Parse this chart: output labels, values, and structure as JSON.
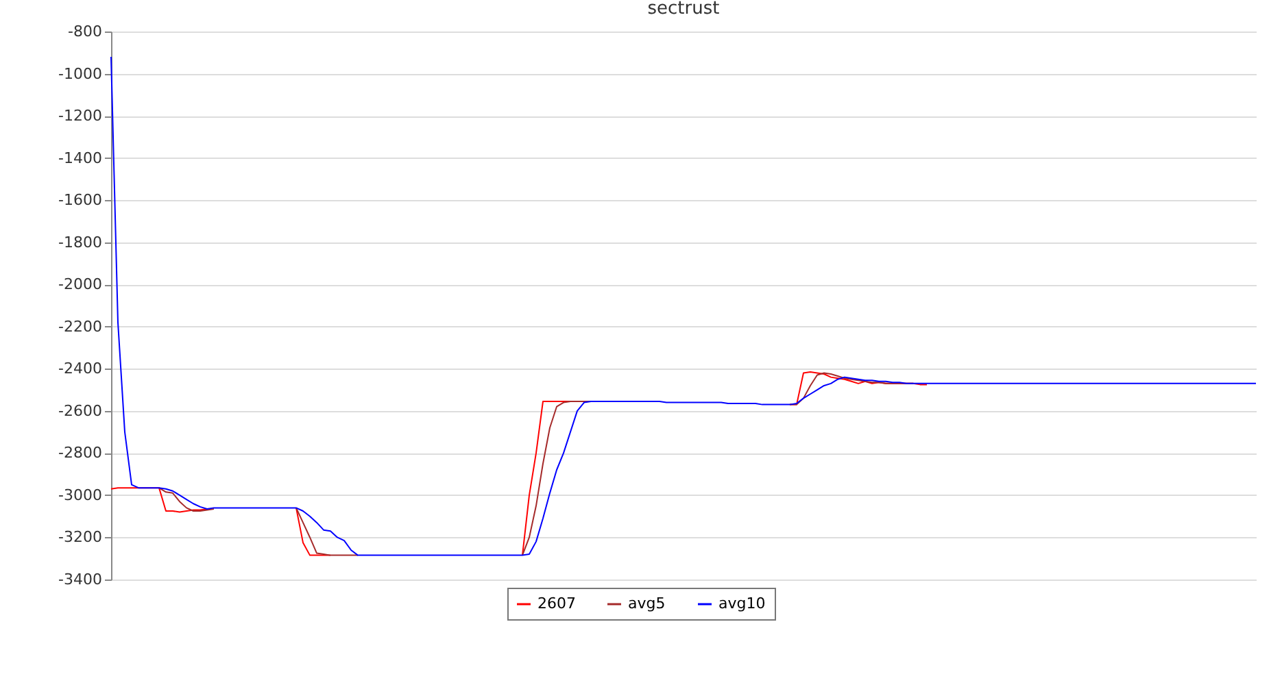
{
  "chart_data": {
    "type": "line",
    "title": "sectrust",
    "categories": [
      null,
      null,
      null,
      null,
      null,
      null,
      null,
      null,
      null,
      null,
      null,
      null,
      null,
      null,
      null,
      null,
      null,
      null,
      null,
      null,
      null,
      null,
      null,
      null,
      null,
      null,
      null,
      null,
      null,
      null,
      null,
      null,
      null,
      null,
      null,
      null,
      null,
      null,
      null,
      null,
      null,
      null,
      null,
      null,
      null,
      null,
      null,
      null,
      null,
      null,
      null,
      null,
      null,
      null,
      null,
      null,
      null,
      null,
      null,
      null,
      null,
      null,
      null,
      null,
      null,
      null,
      null,
      null,
      null,
      null,
      null,
      null,
      null,
      null,
      null,
      null,
      null,
      null,
      null,
      null,
      null,
      null,
      null,
      null,
      null,
      null,
      null,
      null,
      null,
      null,
      null,
      null,
      null,
      null,
      null,
      null,
      null,
      null,
      null,
      null,
      null,
      null,
      null,
      null,
      null,
      null,
      null,
      null,
      null,
      null,
      null,
      null,
      null,
      null,
      null,
      null,
      null,
      null,
      null,
      null,
      null,
      null,
      null,
      null,
      null,
      null,
      null,
      null,
      null,
      null,
      null,
      null,
      null,
      null,
      null,
      null,
      null,
      null,
      null,
      null,
      null,
      null,
      null,
      null,
      null,
      null,
      null,
      null,
      null,
      null,
      null,
      null,
      null,
      null,
      null,
      null,
      null,
      null,
      null,
      null,
      null,
      null,
      null,
      null,
      null,
      null,
      null,
      null
    ],
    "series": [
      {
        "name": "2607",
        "color": "#ff0000",
        "values": [
          -2970,
          -2965,
          -2965,
          -2965,
          -2965,
          -2965,
          -2965,
          -2965,
          -3075,
          -3075,
          -3080,
          -3075,
          -3070,
          -3070,
          -3065,
          null,
          null,
          null,
          null,
          null,
          null,
          null,
          null,
          null,
          null,
          null,
          null,
          -3060,
          -3225,
          -3285,
          -3285,
          -3285,
          -3285,
          null,
          null,
          null,
          null,
          null,
          null,
          null,
          null,
          null,
          null,
          null,
          null,
          null,
          null,
          null,
          null,
          null,
          null,
          null,
          null,
          null,
          null,
          null,
          null,
          null,
          null,
          null,
          -3285,
          -3000,
          -2800,
          -2555,
          -2555,
          -2555,
          -2555,
          -2555,
          null,
          null,
          null,
          null,
          null,
          null,
          null,
          null,
          null,
          null,
          null,
          null,
          null,
          null,
          null,
          null,
          null,
          null,
          null,
          null,
          null,
          null,
          null,
          null,
          null,
          null,
          null,
          null,
          null,
          null,
          null,
          -2570,
          -2570,
          -2420,
          -2415,
          -2420,
          -2425,
          -2440,
          -2445,
          -2450,
          -2460,
          -2470,
          -2460,
          -2470,
          -2465,
          -2470,
          -2470,
          -2470,
          -2470,
          -2470,
          -2475,
          -2475,
          null,
          null,
          null,
          null,
          null,
          null,
          null,
          null,
          null,
          null,
          null,
          null,
          null,
          null,
          null,
          null,
          null,
          null,
          null,
          null,
          null,
          null,
          null,
          null,
          null,
          null,
          null,
          null,
          null,
          null,
          null,
          null,
          null,
          null,
          null,
          null,
          null,
          null,
          null,
          null,
          null,
          null,
          null,
          null,
          null,
          null,
          null,
          null
        ]
      },
      {
        "name": "avg5",
        "color": "#a52a2a",
        "values": [
          null,
          null,
          null,
          null,
          null,
          null,
          null,
          -2965,
          -2985,
          -2990,
          -3030,
          -3060,
          -3075,
          -3075,
          -3070,
          -3065,
          null,
          null,
          null,
          null,
          null,
          null,
          null,
          null,
          null,
          null,
          null,
          -3060,
          -3130,
          -3200,
          -3275,
          -3280,
          -3285,
          -3285,
          -3285,
          -3285,
          -3285,
          null,
          null,
          null,
          null,
          null,
          null,
          null,
          null,
          null,
          null,
          null,
          null,
          null,
          null,
          null,
          null,
          null,
          null,
          null,
          null,
          null,
          null,
          null,
          -3285,
          -3200,
          -3050,
          -2850,
          -2680,
          -2580,
          -2560,
          -2555,
          -2555,
          -2555,
          -2555,
          null,
          null,
          null,
          null,
          null,
          null,
          null,
          null,
          null,
          null,
          null,
          null,
          null,
          null,
          null,
          null,
          null,
          null,
          null,
          null,
          null,
          null,
          null,
          null,
          null,
          null,
          null,
          null,
          -2570,
          -2570,
          -2540,
          -2480,
          -2430,
          -2420,
          -2425,
          -2435,
          -2445,
          -2450,
          -2455,
          -2460,
          -2465,
          -2465,
          -2470,
          -2470,
          -2470,
          -2470,
          -2470,
          null,
          null,
          null,
          null,
          null,
          null,
          null,
          null,
          null,
          null,
          null,
          null,
          null,
          null,
          null,
          null,
          null,
          null,
          null,
          null,
          null,
          null,
          null,
          null,
          null,
          null,
          null,
          null,
          null,
          null,
          null,
          null,
          null,
          null,
          null,
          null,
          null,
          null,
          null,
          null,
          null,
          null,
          null,
          null,
          null,
          null,
          null,
          null,
          null,
          null
        ]
      },
      {
        "name": "avg10",
        "color": "#0000ff",
        "values": [
          -920,
          -2180,
          -2700,
          -2950,
          -2965,
          -2965,
          -2965,
          -2965,
          -2970,
          -2980,
          -3000,
          -3020,
          -3040,
          -3055,
          -3065,
          -3060,
          -3060,
          -3060,
          -3060,
          -3060,
          -3060,
          -3060,
          -3060,
          -3060,
          -3060,
          -3060,
          -3060,
          -3060,
          -3075,
          -3100,
          -3130,
          -3165,
          -3170,
          -3200,
          -3215,
          -3260,
          -3285,
          -3285,
          -3285,
          -3285,
          -3285,
          -3285,
          -3285,
          -3285,
          -3285,
          -3285,
          -3285,
          -3285,
          -3285,
          -3285,
          -3285,
          -3285,
          -3285,
          -3285,
          -3285,
          -3285,
          -3285,
          -3285,
          -3285,
          -3285,
          -3285,
          -3280,
          -3220,
          -3110,
          -2990,
          -2880,
          -2800,
          -2700,
          -2600,
          -2560,
          -2555,
          -2555,
          -2555,
          -2555,
          -2555,
          -2555,
          -2555,
          -2555,
          -2555,
          -2555,
          -2555,
          -2560,
          -2560,
          -2560,
          -2560,
          -2560,
          -2560,
          -2560,
          -2560,
          -2560,
          -2565,
          -2565,
          -2565,
          -2565,
          -2565,
          -2570,
          -2570,
          -2570,
          -2570,
          -2570,
          -2565,
          -2540,
          -2520,
          -2500,
          -2480,
          -2470,
          -2450,
          -2440,
          -2445,
          -2450,
          -2455,
          -2455,
          -2460,
          -2460,
          -2465,
          -2465,
          -2470,
          -2470,
          -2470,
          -2470,
          -2470,
          -2470,
          -2470,
          -2470,
          -2470,
          -2470,
          -2470,
          -2470,
          -2470,
          -2470,
          -2470,
          -2470,
          -2470,
          -2470,
          -2470,
          -2470,
          -2470,
          -2470,
          -2470,
          -2470,
          -2470,
          -2470,
          -2470,
          -2470,
          -2470,
          -2470,
          -2470,
          -2470,
          -2470,
          -2470,
          -2470,
          -2470,
          -2470,
          -2470,
          -2470,
          -2470,
          -2470,
          -2470,
          -2470,
          -2470,
          -2470,
          -2470,
          -2470,
          -2470,
          -2470,
          -2470,
          -2470,
          -2470
        ]
      }
    ],
    "ylim": [
      -3400,
      -800
    ],
    "yticks": [
      -3400,
      -3200,
      -3000,
      -2800,
      -2600,
      -2400,
      -2200,
      -2000,
      -1800,
      -1600,
      -1400,
      -1200,
      -1000,
      -800
    ],
    "grid": "y",
    "legend": "bottom",
    "tick_labels": "y",
    "marker": "none",
    "line_style": "solid"
  }
}
